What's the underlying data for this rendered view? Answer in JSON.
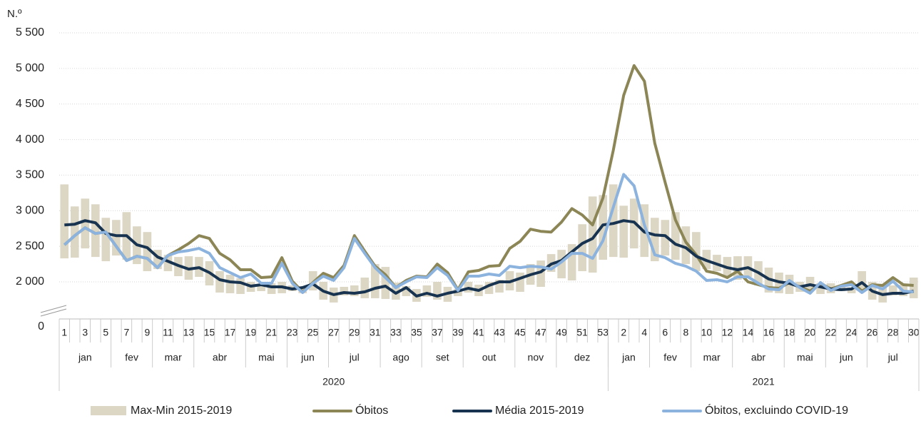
{
  "chart_data": {
    "type": "line",
    "y_axis_label": "N.º",
    "ylim": [
      0,
      5500
    ],
    "axis_break": true,
    "grid": true,
    "yticks": [
      0,
      {
        "value": 2000,
        "label": "2 000"
      },
      {
        "value": 2500,
        "label": "2 500"
      },
      {
        "value": 3000,
        "label": "3 000"
      },
      {
        "value": 3500,
        "label": "3 500"
      },
      {
        "value": 4000,
        "label": "4 000"
      },
      {
        "value": 4500,
        "label": "4 500"
      },
      {
        "value": 5000,
        "label": "5 000"
      },
      {
        "value": 5500,
        "label": "5 500"
      }
    ],
    "categories": [
      "1",
      null,
      "3",
      null,
      "5",
      null,
      "7",
      null,
      "9",
      null,
      "11",
      null,
      "13",
      null,
      "15",
      null,
      "17",
      null,
      "19",
      null,
      "21",
      null,
      "23",
      null,
      "25",
      null,
      "27",
      null,
      "29",
      null,
      "31",
      null,
      "33",
      null,
      "35",
      null,
      "37",
      null,
      "39",
      null,
      "41",
      null,
      "43",
      null,
      "45",
      null,
      "47",
      null,
      "49",
      null,
      "51",
      null,
      "53",
      null,
      "2",
      null,
      "4",
      null,
      "6",
      null,
      "8",
      null,
      "10",
      null,
      "12",
      null,
      "14",
      null,
      "16",
      null,
      "18",
      null,
      "20",
      null,
      "22",
      null,
      "24",
      null,
      "26",
      null,
      "28",
      null,
      "30"
    ],
    "months": [
      "jan",
      "fev",
      "mar",
      "abr",
      "mai",
      "jun",
      "jul",
      "ago",
      "set",
      "out",
      "nov",
      "dez",
      "jan",
      "fev",
      "mar",
      "abr",
      "mai",
      "jun",
      "jul"
    ],
    "years": [
      "2020",
      "2021"
    ],
    "range": {
      "name": "Max-Min 2015-2019",
      "color": "#dcd6c4",
      "low": [
        2330,
        2340,
        2470,
        2350,
        2290,
        2370,
        2310,
        2250,
        2150,
        2180,
        2150,
        2080,
        2030,
        2070,
        1950,
        1850,
        1840,
        1830,
        1860,
        1870,
        1830,
        1840,
        1870,
        1840,
        1880,
        1750,
        1710,
        1810,
        1800,
        1770,
        1770,
        1760,
        1750,
        1800,
        1720,
        1790,
        1750,
        1720,
        1800,
        1850,
        1800,
        1830,
        1850,
        1880,
        1860,
        1960,
        1930,
        2140,
        2050,
        2020,
        2150,
        2130,
        2310,
        2350,
        2340,
        2470,
        2350,
        2290,
        2370,
        2310,
        2250,
        2150,
        2180,
        2150,
        2080,
        2030,
        2070,
        1950,
        1850,
        1840,
        1830,
        1860,
        1870,
        1830,
        1840,
        1870,
        1840,
        1880,
        1750,
        1710,
        1810,
        1800,
        1770
      ],
      "high": [
        3370,
        3060,
        3170,
        3090,
        2900,
        2870,
        2980,
        2780,
        2700,
        2450,
        2380,
        2350,
        2360,
        2350,
        2290,
        2150,
        2100,
        2050,
        2000,
        1960,
        1980,
        2000,
        1950,
        1920,
        2150,
        2000,
        1920,
        1930,
        1950,
        2060,
        2250,
        2210,
        1990,
        1940,
        1900,
        1950,
        2000,
        1930,
        1900,
        2000,
        1960,
        2000,
        2030,
        2150,
        2130,
        2250,
        2300,
        2390,
        2450,
        2530,
        2810,
        3200,
        3220,
        3370,
        3070,
        3170,
        3090,
        2900,
        2870,
        2980,
        2780,
        2700,
        2450,
        2380,
        2350,
        2360,
        2360,
        2290,
        2200,
        2130,
        2100,
        2000,
        2070,
        1980,
        1980,
        1950,
        1920,
        2150,
        2000,
        1950,
        1950,
        1960,
        2060
      ]
    },
    "series": [
      {
        "name": "Óbitos",
        "color": "#8c8657",
        "values": [
          2520,
          2650,
          2760,
          2680,
          2700,
          2500,
          2300,
          2360,
          2330,
          2200,
          2370,
          2450,
          2540,
          2650,
          2610,
          2400,
          2310,
          2170,
          2170,
          2060,
          2070,
          2340,
          2010,
          1860,
          1990,
          2120,
          2060,
          2230,
          2650,
          2430,
          2220,
          2100,
          1920,
          2020,
          2080,
          2070,
          2250,
          2130,
          1890,
          2140,
          2160,
          2220,
          2230,
          2470,
          2570,
          2740,
          2710,
          2700,
          2840,
          3030,
          2940,
          2800,
          3180,
          3850,
          4620,
          5040,
          4820,
          3950,
          3400,
          2870,
          2560,
          2380,
          2150,
          2120,
          2060,
          2150,
          2000,
          1960,
          1920,
          1910,
          1990,
          1930,
          1870,
          1980,
          1900,
          1950,
          2000,
          1870,
          1960,
          1950,
          2060,
          1960,
          1950
        ]
      },
      {
        "name": "Média 2015-2019",
        "color": "#17334f",
        "values": [
          2800,
          2810,
          2860,
          2830,
          2680,
          2650,
          2650,
          2520,
          2480,
          2350,
          2290,
          2230,
          2180,
          2200,
          2130,
          2030,
          2000,
          1990,
          1940,
          1960,
          1930,
          1930,
          1900,
          1920,
          1970,
          1870,
          1820,
          1850,
          1840,
          1860,
          1910,
          1940,
          1840,
          1920,
          1800,
          1840,
          1800,
          1840,
          1870,
          1910,
          1880,
          1950,
          2000,
          2000,
          2050,
          2100,
          2140,
          2250,
          2300,
          2420,
          2540,
          2610,
          2800,
          2820,
          2860,
          2840,
          2700,
          2660,
          2650,
          2530,
          2480,
          2360,
          2300,
          2250,
          2200,
          2170,
          2200,
          2130,
          2040,
          2000,
          1980,
          1930,
          1960,
          1930,
          1900,
          1890,
          1900,
          1990,
          1870,
          1820,
          1840,
          1840,
          1870
        ]
      },
      {
        "name": "Óbitos, excluindo COVID-19",
        "color": "#8cb3de",
        "values": [
          2520,
          2650,
          2760,
          2680,
          2700,
          2500,
          2300,
          2360,
          2330,
          2200,
          2370,
          2420,
          2440,
          2470,
          2400,
          2200,
          2130,
          2060,
          2110,
          1980,
          1980,
          2260,
          1980,
          1850,
          1980,
          2080,
          2020,
          2200,
          2610,
          2400,
          2200,
          2060,
          1920,
          2000,
          2070,
          2060,
          2200,
          2090,
          1880,
          2080,
          2080,
          2110,
          2090,
          2220,
          2200,
          2220,
          2210,
          2180,
          2280,
          2400,
          2400,
          2330,
          2580,
          3050,
          3510,
          3350,
          2800,
          2380,
          2340,
          2260,
          2220,
          2150,
          2020,
          2030,
          2000,
          2070,
          2070,
          1980,
          1900,
          1890,
          2020,
          1920,
          1840,
          1990,
          1880,
          1940,
          1960,
          1850,
          1950,
          1900,
          2010,
          1870,
          1860
        ]
      }
    ]
  }
}
